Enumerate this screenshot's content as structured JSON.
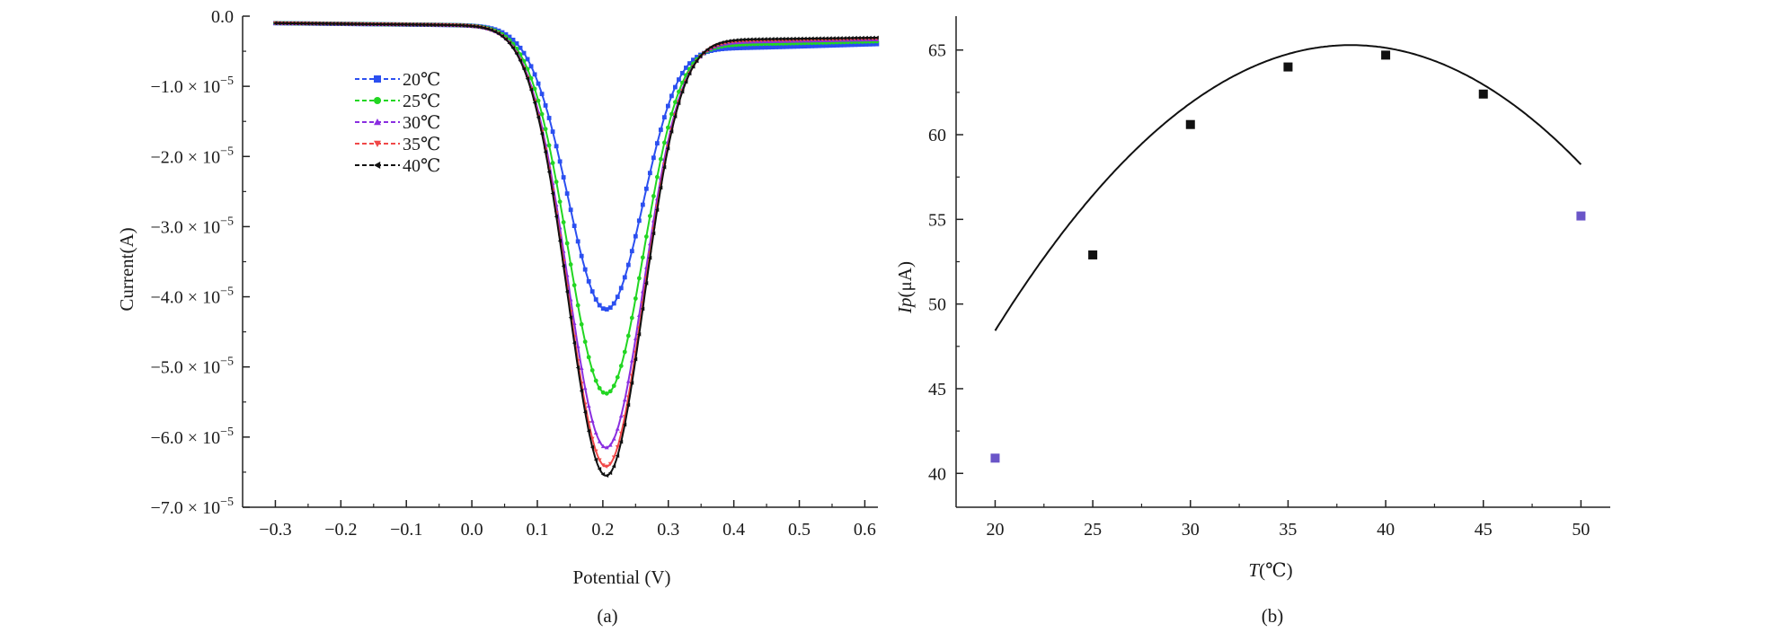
{
  "chart_data": [
    {
      "type": "line",
      "panel_label": "(a)",
      "xlabel": "Potential (V)",
      "ylabel": "Current(A)",
      "xlim": [
        -0.35,
        0.62
      ],
      "ylim": [
        -7e-05,
        0.0
      ],
      "x_ticks": [
        {
          "value": -0.3,
          "label": "−0.3"
        },
        {
          "value": -0.2,
          "label": "−0.2"
        },
        {
          "value": -0.1,
          "label": "−0.1"
        },
        {
          "value": 0.0,
          "label": "0.0"
        },
        {
          "value": 0.1,
          "label": "0.1"
        },
        {
          "value": 0.2,
          "label": "0.2"
        },
        {
          "value": 0.3,
          "label": "0.3"
        },
        {
          "value": 0.4,
          "label": "0.4"
        },
        {
          "value": 0.5,
          "label": "0.5"
        },
        {
          "value": 0.6,
          "label": "0.6"
        }
      ],
      "y_ticks": [
        {
          "value": 0.0,
          "mant": "0.0",
          "exp": ""
        },
        {
          "value": -1e-05,
          "mant": "−1.0 × 10",
          "exp": "−5"
        },
        {
          "value": -2e-05,
          "mant": "−2.0 × 10",
          "exp": "−5"
        },
        {
          "value": -3e-05,
          "mant": "−3.0 × 10",
          "exp": "−5"
        },
        {
          "value": -4e-05,
          "mant": "−4.0 × 10",
          "exp": "−5"
        },
        {
          "value": -5e-05,
          "mant": "−5.0 × 10",
          "exp": "−5"
        },
        {
          "value": -6e-05,
          "mant": "−6.0 × 10",
          "exp": "−5"
        },
        {
          "value": -7e-05,
          "mant": "−7.0 × 10",
          "exp": "−5"
        }
      ],
      "grid": false,
      "legend_position": "top-left",
      "series": [
        {
          "name": "20℃",
          "color": "#2b4ff0",
          "marker": "square",
          "peak_x": 0.205,
          "peak_y": -4.18e-05,
          "sigma": 0.058,
          "baseline_start": -1e-06,
          "baseline_end": -1.9e-06,
          "tail_y": -3.2e-06
        },
        {
          "name": "25℃",
          "color": "#22d622",
          "marker": "circle",
          "peak_x": 0.205,
          "peak_y": -5.38e-05,
          "sigma": 0.058,
          "baseline_start": -1e-06,
          "baseline_end": -1.9e-06,
          "tail_y": -2.6e-06
        },
        {
          "name": "30℃",
          "color": "#8a2ee0",
          "marker": "triangle-up",
          "peak_x": 0.205,
          "peak_y": -6.15e-05,
          "sigma": 0.058,
          "baseline_start": -1e-06,
          "baseline_end": -1.9e-06,
          "tail_y": -2.2e-06
        },
        {
          "name": "35℃",
          "color": "#f04848",
          "marker": "triangle-down",
          "peak_x": 0.205,
          "peak_y": -6.42e-05,
          "sigma": 0.058,
          "baseline_start": -1e-06,
          "baseline_end": -1.9e-06,
          "tail_y": -2e-06
        },
        {
          "name": "40℃",
          "color": "#111111",
          "marker": "triangle-left",
          "peak_x": 0.205,
          "peak_y": -6.55e-05,
          "sigma": 0.058,
          "baseline_start": -1e-06,
          "baseline_end": -1.9e-06,
          "tail_y": -1.8e-06
        }
      ]
    },
    {
      "type": "scatter",
      "panel_label": "(b)",
      "xlabel_italic": "T",
      "xlabel_rest": "(℃)",
      "ylabel_italic": "Ip",
      "ylabel_rest": "(μA)",
      "xlim": [
        18,
        51.5
      ],
      "ylim": [
        38,
        67
      ],
      "x_ticks": [
        20,
        25,
        30,
        35,
        40,
        45,
        50
      ],
      "y_ticks": [
        40,
        45,
        50,
        55,
        60,
        65
      ],
      "grid": false,
      "points": [
        {
          "x": 20,
          "y": 40.9,
          "color": "#6a55c8"
        },
        {
          "x": 25,
          "y": 52.9,
          "color": "#111111"
        },
        {
          "x": 30,
          "y": 60.6,
          "color": "#111111"
        },
        {
          "x": 35,
          "y": 64.0,
          "color": "#111111"
        },
        {
          "x": 40,
          "y": 64.7,
          "color": "#111111"
        },
        {
          "x": 45,
          "y": 62.4,
          "color": "#111111"
        },
        {
          "x": 50,
          "y": 55.2,
          "color": "#6a55c8"
        }
      ],
      "fit": {
        "type": "quadratic",
        "a": -0.0508,
        "b": 3.883,
        "c": -8.91,
        "x_range": [
          20,
          50
        ],
        "color": "#111111"
      }
    }
  ]
}
